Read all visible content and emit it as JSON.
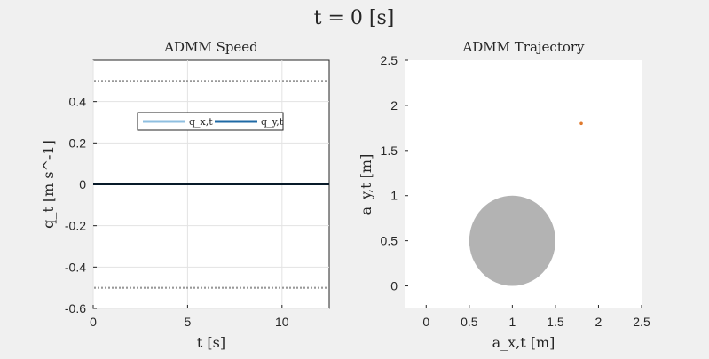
{
  "figure": {
    "title": "t = 0 [s]"
  },
  "chart_data": [
    {
      "type": "line",
      "title": "ADMM Speed",
      "xlabel": "t [s]",
      "ylabel": "q_t [m s^-1]",
      "xlim": [
        0,
        12.5
      ],
      "ylim": [
        -0.6,
        0.6
      ],
      "xticks": [
        0,
        5,
        10
      ],
      "xtick_labels": [
        "0",
        "5",
        "10"
      ],
      "yticks": [
        -0.6,
        -0.4,
        -0.2,
        0,
        0.2,
        0.4
      ],
      "ytick_labels": [
        "-0.6",
        "-0.4",
        "-0.2",
        "0",
        "0.2",
        "0.4"
      ],
      "grid": true,
      "legend_position": "top-center",
      "series": [
        {
          "name": "q_x,t",
          "color": "#8fbfe0",
          "x": [
            0,
            12.5
          ],
          "y": [
            0,
            0
          ]
        },
        {
          "name": "q_y,t",
          "color": "#1f6aa5",
          "x": [
            0,
            12.5
          ],
          "y": [
            0,
            0
          ]
        }
      ],
      "baseline": {
        "y": 0,
        "color": "#000000"
      },
      "bounds": [
        {
          "y": 0.5,
          "style": "dotted",
          "color": "#999999"
        },
        {
          "y": -0.5,
          "style": "dotted",
          "color": "#999999"
        }
      ]
    },
    {
      "type": "scatter",
      "title": "ADMM Trajectory",
      "xlabel": "a_x,t [m]",
      "ylabel": "a_y,t [m]",
      "xlim": [
        -0.25,
        2.5
      ],
      "ylim": [
        -0.25,
        2.5
      ],
      "xticks": [
        0,
        0.5,
        1,
        1.5,
        2,
        2.5
      ],
      "xtick_labels": [
        "0",
        "0.5",
        "1",
        "1.5",
        "2",
        "2.5"
      ],
      "yticks": [
        0,
        0.5,
        1,
        1.5,
        2,
        2.5
      ],
      "ytick_labels": [
        "0",
        "0.5",
        "1",
        "1.5",
        "2",
        "2.5"
      ],
      "grid": false,
      "obstacle": {
        "cx": 1.0,
        "cy": 0.5,
        "r": 0.5,
        "color": "#b3b3b3"
      },
      "points": [
        {
          "x": 1.8,
          "y": 1.8,
          "color": "#e07a2e"
        }
      ]
    }
  ]
}
